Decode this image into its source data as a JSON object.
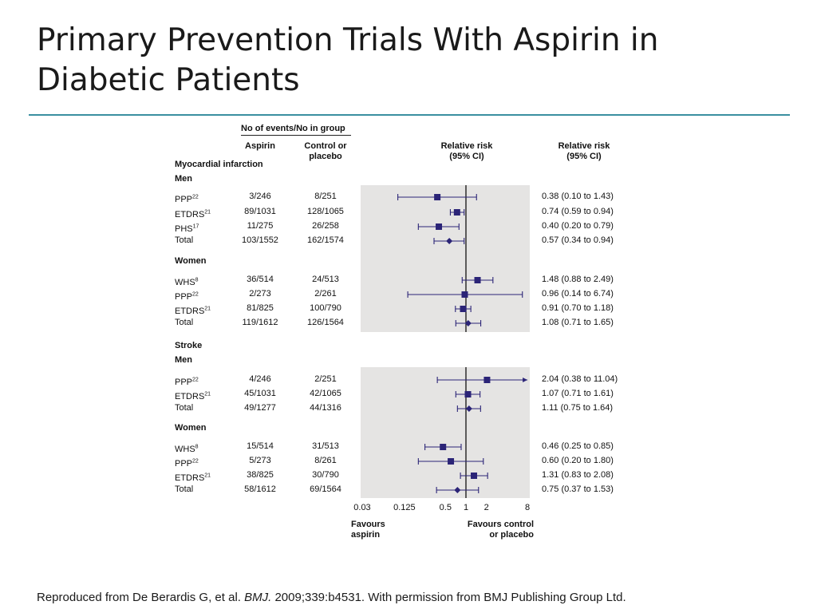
{
  "slide": {
    "title_line1": "Primary Prevention Trials With Aspirin in",
    "title_line2": "Diabetic Patients",
    "caption_pre": "Reproduced from De Berardis G, et al. ",
    "caption_journal": "BMJ.",
    "caption_post": " 2009;339:b4531. With permission from BMJ Publishing Group Ltd."
  },
  "table_headers": {
    "group_header": "No of events/No in group",
    "aspirin_col": "Aspirin",
    "control_col_line1": "Control or",
    "control_col_line2": "placebo",
    "plot_col_line1": "Relative risk",
    "plot_col_line2": "(95% CI)",
    "rr_col_line1": "Relative risk",
    "rr_col_line2": "(95% CI)"
  },
  "chart_data": {
    "type": "forest",
    "x_scale": "log2",
    "xlim": [
      0.03,
      8
    ],
    "reference_line": 1,
    "x_ticks": [
      {
        "value": 0.03,
        "label": "0.03"
      },
      {
        "value": 0.125,
        "label": "0.125"
      },
      {
        "value": 0.5,
        "label": "0.5"
      },
      {
        "value": 1,
        "label": "1"
      },
      {
        "value": 2,
        "label": "2"
      },
      {
        "value": 8,
        "label": "8"
      }
    ],
    "favours_left_line1": "Favours",
    "favours_left_line2": "aspirin",
    "favours_right_line1": "Favours control",
    "favours_right_line2": "or placebo",
    "sections": [
      {
        "outcome": "Myocardial infarction",
        "groups": [
          {
            "label": "Men",
            "rows": [
              {
                "study": "PPP",
                "ref": "22",
                "aspirin": "3/246",
                "control": "8/251",
                "rr": 0.38,
                "lo": 0.1,
                "hi": 1.43,
                "text": "0.38 (0.10 to 1.43)",
                "kind": "study"
              },
              {
                "study": "ETDRS",
                "ref": "21",
                "aspirin": "89/1031",
                "control": "128/1065",
                "rr": 0.74,
                "lo": 0.59,
                "hi": 0.94,
                "text": "0.74 (0.59 to 0.94)",
                "kind": "study"
              },
              {
                "study": "PHS",
                "ref": "17",
                "aspirin": "11/275",
                "control": "26/258",
                "rr": 0.4,
                "lo": 0.2,
                "hi": 0.79,
                "text": "0.40 (0.20 to 0.79)",
                "kind": "study"
              },
              {
                "study": "Total",
                "ref": "",
                "aspirin": "103/1552",
                "control": "162/1574",
                "rr": 0.57,
                "lo": 0.34,
                "hi": 0.94,
                "text": "0.57 (0.34 to 0.94)",
                "kind": "total"
              }
            ]
          },
          {
            "label": "Women",
            "rows": [
              {
                "study": "WHS",
                "ref": "8",
                "aspirin": "36/514",
                "control": "24/513",
                "rr": 1.48,
                "lo": 0.88,
                "hi": 2.49,
                "text": "1.48 (0.88 to 2.49)",
                "kind": "study"
              },
              {
                "study": "PPP",
                "ref": "22",
                "aspirin": "2/273",
                "control": "2/261",
                "rr": 0.96,
                "lo": 0.14,
                "hi": 6.74,
                "text": "0.96 (0.14 to 6.74)",
                "kind": "study"
              },
              {
                "study": "ETDRS",
                "ref": "21",
                "aspirin": "81/825",
                "control": "100/790",
                "rr": 0.91,
                "lo": 0.7,
                "hi": 1.18,
                "text": "0.91 (0.70 to 1.18)",
                "kind": "study"
              },
              {
                "study": "Total",
                "ref": "",
                "aspirin": "119/1612",
                "control": "126/1564",
                "rr": 1.08,
                "lo": 0.71,
                "hi": 1.65,
                "text": "1.08 (0.71 to 1.65)",
                "kind": "total"
              }
            ]
          }
        ]
      },
      {
        "outcome": "Stroke",
        "groups": [
          {
            "label": "Men",
            "rows": [
              {
                "study": "PPP",
                "ref": "22",
                "aspirin": "4/246",
                "control": "2/251",
                "rr": 2.04,
                "lo": 0.38,
                "hi": 11.04,
                "text": "2.04 (0.38 to 11.04)",
                "kind": "study",
                "arrow_right": true
              },
              {
                "study": "ETDRS",
                "ref": "21",
                "aspirin": "45/1031",
                "control": "42/1065",
                "rr": 1.07,
                "lo": 0.71,
                "hi": 1.61,
                "text": "1.07 (0.71 to 1.61)",
                "kind": "study"
              },
              {
                "study": "Total",
                "ref": "",
                "aspirin": "49/1277",
                "control": "44/1316",
                "rr": 1.11,
                "lo": 0.75,
                "hi": 1.64,
                "text": "1.11 (0.75 to 1.64)",
                "kind": "total"
              }
            ]
          },
          {
            "label": "Women",
            "rows": [
              {
                "study": "WHS",
                "ref": "8",
                "aspirin": "15/514",
                "control": "31/513",
                "rr": 0.46,
                "lo": 0.25,
                "hi": 0.85,
                "text": "0.46 (0.25 to 0.85)",
                "kind": "study"
              },
              {
                "study": "PPP",
                "ref": "22",
                "aspirin": "5/273",
                "control": "8/261",
                "rr": 0.6,
                "lo": 0.2,
                "hi": 1.8,
                "text": "0.60 (0.20 to 1.80)",
                "kind": "study"
              },
              {
                "study": "ETDRS",
                "ref": "21",
                "aspirin": "38/825",
                "control": "30/790",
                "rr": 1.31,
                "lo": 0.83,
                "hi": 2.08,
                "text": "1.31 (0.83 to 2.08)",
                "kind": "study"
              },
              {
                "study": "Total",
                "ref": "",
                "aspirin": "58/1612",
                "control": "69/1564",
                "rr": 0.75,
                "lo": 0.37,
                "hi": 1.53,
                "text": "0.75 (0.37 to 1.53)",
                "kind": "total"
              }
            ]
          }
        ]
      }
    ],
    "colors": {
      "marker": "#2b2477",
      "panel": "#e5e4e3",
      "axis": "#111111"
    }
  }
}
